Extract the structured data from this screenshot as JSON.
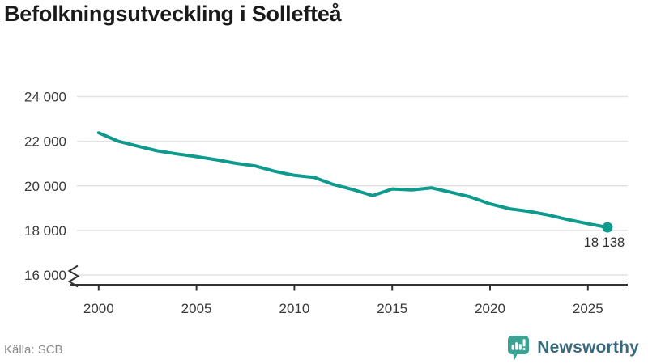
{
  "header": {
    "title": "Befolkningsutveckling i Sollefteå"
  },
  "footer": {
    "source": "Källa: SCB",
    "brand": "Newsworthy"
  },
  "colors": {
    "line": "#0e9a8c",
    "grid": "#e2e2e2",
    "axis": "#333333",
    "tick_text": "#3a3a3a",
    "end_label_text": "#2e2e2e",
    "title_text": "#1a1a1a",
    "source_text": "#8a8a8a",
    "brand_text": "#38697c",
    "brand_icon": "#3ba294"
  },
  "chart_data": {
    "type": "line",
    "title": "Befolkningsutveckling i Sollefteå",
    "xlabel": "",
    "ylabel": "",
    "x": [
      2000,
      2001,
      2002,
      2003,
      2004,
      2005,
      2006,
      2007,
      2008,
      2009,
      2010,
      2011,
      2012,
      2013,
      2014,
      2015,
      2016,
      2017,
      2018,
      2019,
      2020,
      2021,
      2022,
      2023,
      2024,
      2025,
      2026
    ],
    "values": [
      22380,
      22000,
      21780,
      21570,
      21430,
      21310,
      21170,
      21010,
      20890,
      20650,
      20470,
      20380,
      20060,
      19830,
      19560,
      19860,
      19820,
      19910,
      19710,
      19500,
      19190,
      18970,
      18850,
      18690,
      18480,
      18300,
      18138
    ],
    "end_label": "18 138",
    "end_value": 18138,
    "x_ticks": [
      {
        "value": 2000,
        "label": "2000"
      },
      {
        "value": 2005,
        "label": "2005"
      },
      {
        "value": 2010,
        "label": "2010"
      },
      {
        "value": 2015,
        "label": "2015"
      },
      {
        "value": 2020,
        "label": "2020"
      },
      {
        "value": 2025,
        "label": "2025"
      }
    ],
    "y_ticks": [
      {
        "value": 16000,
        "label": "16 000"
      },
      {
        "value": 18000,
        "label": "18 000"
      },
      {
        "value": 20000,
        "label": "20 000"
      },
      {
        "value": 22000,
        "label": "22 000"
      },
      {
        "value": 24000,
        "label": "24 000"
      }
    ],
    "ylim": [
      16000,
      24400
    ],
    "xlim": [
      1998.6,
      2027
    ],
    "grid": "horizontal",
    "axis_break_below": 16000,
    "legend": "none"
  }
}
